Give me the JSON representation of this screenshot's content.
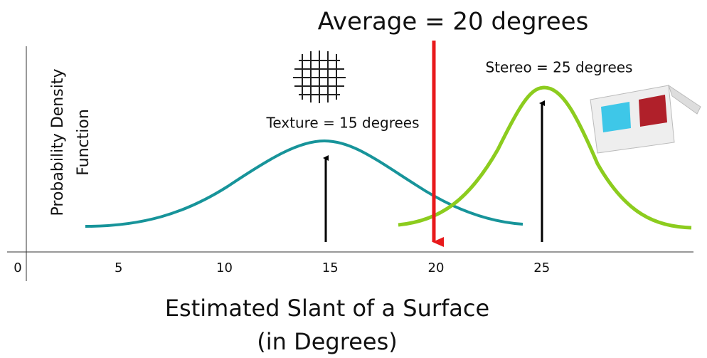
{
  "chart_data": {
    "type": "line",
    "title": "Average = 20 degrees",
    "annotations": [
      "Stereo = 25 degrees",
      "Texture = 15 degrees"
    ],
    "ylabel": [
      "Probability Density",
      "Function"
    ],
    "xlabel": [
      "Estimated Slant of a Surface",
      "(in Degrees)"
    ],
    "xlim": [
      0,
      32
    ],
    "xticks": [
      0,
      5,
      10,
      15,
      20,
      25
    ]
  }
}
